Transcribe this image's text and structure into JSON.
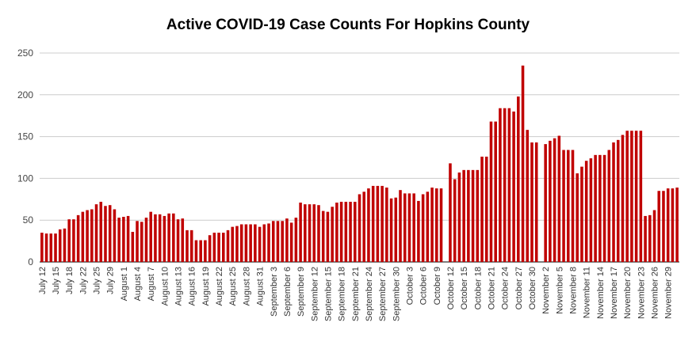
{
  "chart_data": {
    "type": "bar",
    "title": "Active COVID-19 Case Counts For Hopkins County",
    "xlabel": "",
    "ylabel": "",
    "ylim": [
      0,
      250
    ],
    "yticks": [
      0,
      50,
      100,
      150,
      200,
      250
    ],
    "grid": true,
    "legend": "none",
    "bar_color": "#c00000",
    "grid_color": "#cccccc",
    "x_tick_labels": [
      "July 12",
      "July 15",
      "July 18",
      "July 22",
      "July 25",
      "July 29",
      "August 1",
      "August 4",
      "August 7",
      "August 10",
      "August 13",
      "August 16",
      "August 19",
      "August 22",
      "August 25",
      "August 28",
      "August 31",
      "September 3",
      "September 6",
      "September 9",
      "September 12",
      "September 15",
      "September 18",
      "September 21",
      "September 24",
      "September 27",
      "September 30",
      "October 3",
      "October 6",
      "October 9",
      "October 12",
      "October 15",
      "October 18",
      "October 21",
      "October 24",
      "October 27",
      "October 30",
      "November 2",
      "November 5",
      "November 8",
      "November 11",
      "November 14",
      "November 17",
      "November 20",
      "November 23",
      "November 26",
      "November 29"
    ],
    "values": [
      35,
      34,
      34,
      34,
      39,
      40,
      51,
      51,
      56,
      60,
      62,
      63,
      69,
      72,
      67,
      68,
      63,
      53,
      54,
      55,
      36,
      49,
      48,
      53,
      60,
      57,
      57,
      55,
      58,
      58,
      51,
      52,
      38,
      38,
      26,
      26,
      26,
      32,
      35,
      35,
      35,
      38,
      42,
      43,
      45,
      45,
      45,
      45,
      42,
      45,
      46,
      49,
      49,
      49,
      52,
      47,
      53,
      71,
      69,
      69,
      69,
      68,
      61,
      60,
      66,
      71,
      72,
      72,
      72,
      72,
      81,
      84,
      88,
      91,
      91,
      91,
      89,
      76,
      77,
      86,
      82,
      82,
      82,
      73,
      81,
      84,
      89,
      88,
      88,
      null,
      118,
      99,
      107,
      110,
      110,
      110,
      110,
      126,
      126,
      168,
      168,
      184,
      184,
      184,
      180,
      198,
      235,
      158,
      143,
      143,
      null,
      141,
      145,
      148,
      151,
      134,
      134,
      134,
      106,
      114,
      121,
      124,
      128,
      128,
      128,
      134,
      143,
      146,
      152,
      157,
      157,
      157,
      157,
      55,
      56,
      62,
      85,
      85,
      88,
      88,
      89
    ]
  }
}
